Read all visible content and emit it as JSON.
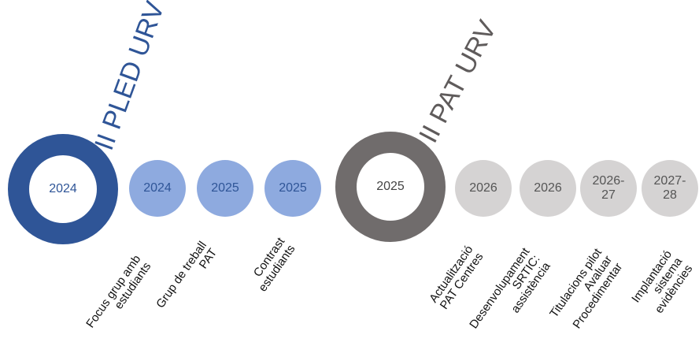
{
  "pled": {
    "title": "II PLED URV",
    "year": "2024",
    "color": "#2f5597",
    "milestones": [
      {
        "year": "2024",
        "label_lines": [
          "Focus grup amb",
          "estudiants"
        ]
      },
      {
        "year": "2025",
        "label_lines": [
          "Grup de treball",
          "PAT"
        ]
      },
      {
        "year": "2025",
        "label_lines": [
          "Contrast",
          "estudiants"
        ]
      }
    ]
  },
  "pat": {
    "title": "II PAT URV",
    "year": "2025",
    "color": "#706c6c",
    "milestones": [
      {
        "year": "2026",
        "label_lines": [
          "Actualització",
          "PAT Centres"
        ]
      },
      {
        "year": "2026",
        "label_lines": [
          "Desenvolupament",
          "SRTIC:",
          "assistència"
        ]
      },
      {
        "year": "2026-27",
        "year_lines": [
          "2026-",
          "27"
        ],
        "label_lines": [
          "Titulacions pilot",
          "Avaluar",
          "Procedimentar"
        ]
      },
      {
        "year": "2027-28",
        "year_lines": [
          "2027-",
          "28"
        ],
        "label_lines": [
          "Implantació",
          "sistema",
          "evidències"
        ]
      }
    ]
  }
}
